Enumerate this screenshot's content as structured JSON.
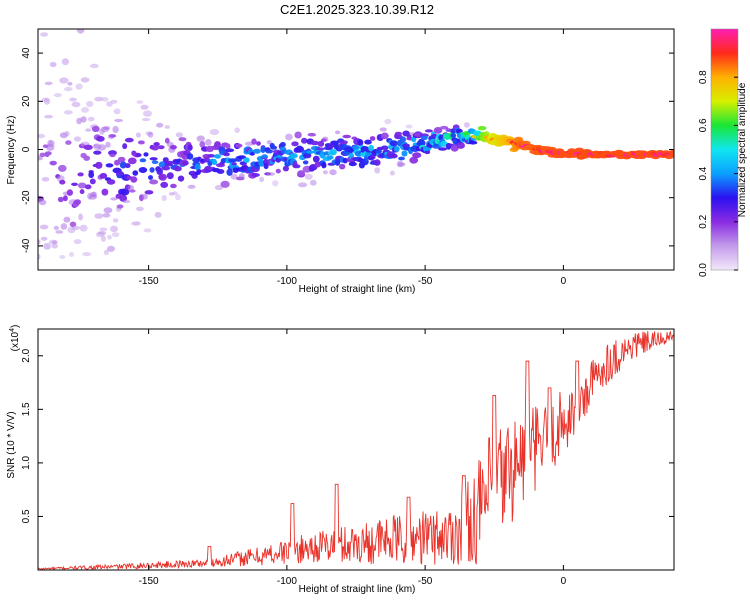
{
  "title": "C2E1.2025.323.10.39.R12",
  "chart_data": [
    {
      "type": "heatmap",
      "name": "spectrogram",
      "xlabel": "Height of straight line (km)",
      "ylabel": "Frequency (Hz)",
      "xlim": [
        -190,
        40
      ],
      "ylim": [
        -50,
        50
      ],
      "xticks": [
        -150,
        -100,
        -50,
        0
      ],
      "xtick_labels": [
        "-150",
        "-100",
        "-50",
        "0"
      ],
      "yticks": [
        -40,
        -20,
        0,
        20,
        40
      ],
      "ytick_labels": [
        "-40",
        "-20",
        "0",
        "20",
        "40"
      ],
      "colorbar": {
        "label": "Normalized spectral amplitude",
        "range": [
          0,
          1
        ],
        "ticks": [
          0.0,
          0.2,
          0.4,
          0.6,
          0.8
        ],
        "tick_labels": [
          "0.0",
          "0.2",
          "0.4",
          "0.6",
          "0.8"
        ],
        "colormap": [
          "#f2e8fb",
          "#c39bea",
          "#8a2be2",
          "#2a12f0",
          "#0aa0ff",
          "#10e6f0",
          "#19e635",
          "#d8f000",
          "#ffb000",
          "#ff2a1a",
          "#ff1eb4"
        ]
      },
      "ridge": [
        {
          "x": -190,
          "y": -12
        },
        {
          "x": -170,
          "y": -10
        },
        {
          "x": -150,
          "y": -7
        },
        {
          "x": -130,
          "y": -5
        },
        {
          "x": -110,
          "y": -4
        },
        {
          "x": -90,
          "y": -2
        },
        {
          "x": -70,
          "y": -1
        },
        {
          "x": -55,
          "y": 1
        },
        {
          "x": -45,
          "y": 4
        },
        {
          "x": -35,
          "y": 6
        },
        {
          "x": -25,
          "y": 4
        },
        {
          "x": -15,
          "y": 2
        },
        {
          "x": -5,
          "y": -1
        },
        {
          "x": 10,
          "y": -2
        },
        {
          "x": 40,
          "y": -2
        }
      ],
      "spread_hz": [
        {
          "x": -190,
          "s": 40
        },
        {
          "x": -170,
          "s": 25
        },
        {
          "x": -140,
          "s": 10
        },
        {
          "x": -100,
          "s": 8
        },
        {
          "x": -60,
          "s": 7
        },
        {
          "x": -40,
          "s": 4
        },
        {
          "x": -20,
          "s": 2
        },
        {
          "x": 0,
          "s": 1.2
        },
        {
          "x": 40,
          "s": 1
        }
      ],
      "amplitude": [
        {
          "x": -190,
          "a": 0.15
        },
        {
          "x": -160,
          "a": 0.3
        },
        {
          "x": -120,
          "a": 0.38
        },
        {
          "x": -80,
          "a": 0.42
        },
        {
          "x": -50,
          "a": 0.48
        },
        {
          "x": -35,
          "a": 0.6
        },
        {
          "x": -25,
          "a": 0.8
        },
        {
          "x": -15,
          "a": 0.95
        },
        {
          "x": 0,
          "a": 0.97
        },
        {
          "x": 40,
          "a": 0.97
        }
      ]
    },
    {
      "type": "line",
      "name": "snr",
      "xlabel": "Height of straight line (km)",
      "ylabel": "SNR (10 * V/V)",
      "scale_label": "(x10",
      "scale_exponent": "4",
      "scale_close": ")",
      "xlim": [
        -190,
        40
      ],
      "ylim": [
        0,
        2.25
      ],
      "xticks": [
        -150,
        -100,
        -50,
        0
      ],
      "xtick_labels": [
        "-150",
        "-100",
        "-50",
        "0"
      ],
      "yticks": [
        0.5,
        1.0,
        1.5,
        2.0
      ],
      "ytick_labels": [
        "0.5",
        "1.0",
        "1.5",
        "2.0"
      ],
      "line_color": "#e8322a",
      "trend": [
        {
          "x": -190,
          "y": 0.01
        },
        {
          "x": -160,
          "y": 0.03
        },
        {
          "x": -130,
          "y": 0.06
        },
        {
          "x": -110,
          "y": 0.12
        },
        {
          "x": -90,
          "y": 0.2
        },
        {
          "x": -70,
          "y": 0.24
        },
        {
          "x": -50,
          "y": 0.28
        },
        {
          "x": -40,
          "y": 0.3
        },
        {
          "x": -32,
          "y": 0.45
        },
        {
          "x": -25,
          "y": 0.7
        },
        {
          "x": -15,
          "y": 1.0
        },
        {
          "x": -5,
          "y": 1.2
        },
        {
          "x": 5,
          "y": 1.5
        },
        {
          "x": 15,
          "y": 1.9
        },
        {
          "x": 25,
          "y": 2.08
        },
        {
          "x": 40,
          "y": 2.18
        }
      ],
      "noise": [
        {
          "x": -190,
          "n": 0.01
        },
        {
          "x": -130,
          "n": 0.05
        },
        {
          "x": -90,
          "n": 0.18
        },
        {
          "x": -60,
          "n": 0.3
        },
        {
          "x": -40,
          "n": 0.35
        },
        {
          "x": -25,
          "n": 0.75
        },
        {
          "x": -10,
          "n": 0.5
        },
        {
          "x": 10,
          "n": 0.3
        },
        {
          "x": 40,
          "n": 0.05
        }
      ],
      "peaks": [
        {
          "x": -128,
          "y": 0.22
        },
        {
          "x": -98,
          "y": 0.62
        },
        {
          "x": -82,
          "y": 0.8
        },
        {
          "x": -56,
          "y": 0.68
        },
        {
          "x": -36,
          "y": 0.88
        },
        {
          "x": -25,
          "y": 1.63
        },
        {
          "x": -13,
          "y": 1.95
        },
        {
          "x": -5,
          "y": 1.7
        },
        {
          "x": 5,
          "y": 1.95
        }
      ]
    }
  ]
}
